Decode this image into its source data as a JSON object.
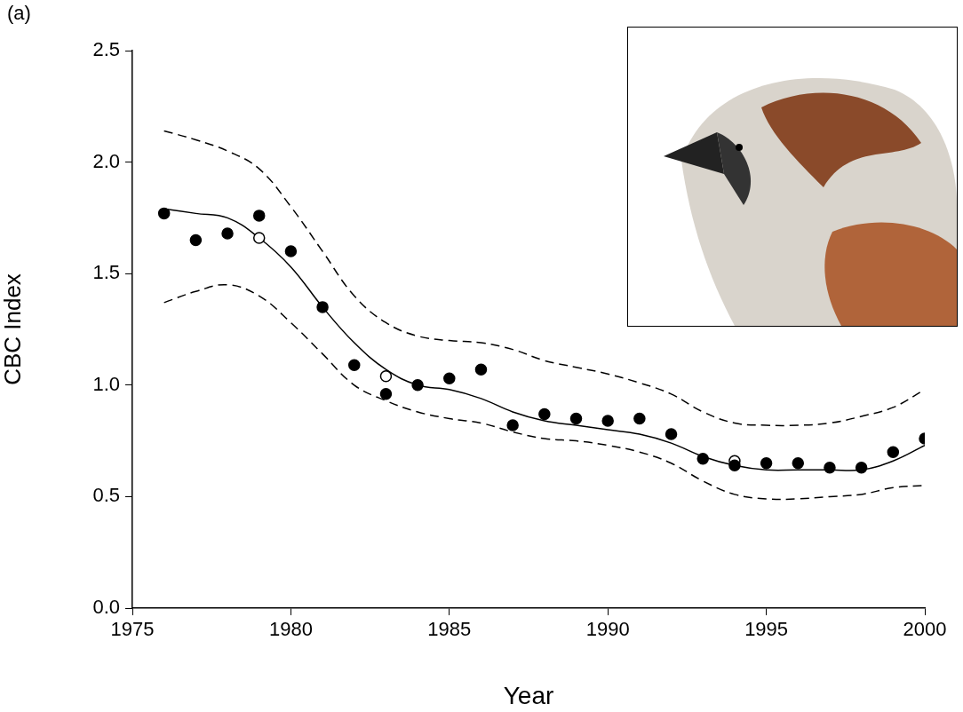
{
  "chart_data": {
    "type": "scatter",
    "panel_label": "(a)",
    "x_label": "Year",
    "y_label": "CBC Index",
    "xlim": [
      1975,
      2000
    ],
    "xticks": [
      1975,
      1980,
      1985,
      1990,
      1995,
      2000
    ],
    "ylim": [
      0,
      2.5
    ],
    "yticks": [
      {
        "value": 0,
        "label": "0.0"
      },
      0.5,
      {
        "value": 1,
        "label": "1.0"
      },
      1.5,
      {
        "value": 2,
        "label": "2.0"
      },
      2.5
    ],
    "grid": false,
    "series": [
      {
        "type": "line",
        "line_style": "dashed",
        "color": "#000000",
        "x": [
          1976,
          1977,
          1978,
          1979,
          1980,
          1981,
          1982,
          1983,
          1984,
          1985,
          1986,
          1987,
          1988,
          1989,
          1990,
          1991,
          1992,
          1993,
          1994,
          1995,
          1996,
          1997,
          1998,
          1999,
          2000
        ],
        "values": [
          2.14,
          2.1,
          2.05,
          1.97,
          1.8,
          1.6,
          1.4,
          1.28,
          1.22,
          1.2,
          1.19,
          1.16,
          1.11,
          1.08,
          1.05,
          1.01,
          0.96,
          0.88,
          0.83,
          0.82,
          0.82,
          0.83,
          0.86,
          0.9,
          0.98
        ]
      },
      {
        "type": "line",
        "line_style": "dashed",
        "color": "#000000",
        "x": [
          1976,
          1977,
          1978,
          1979,
          1980,
          1981,
          1982,
          1983,
          1984,
          1985,
          1986,
          1987,
          1988,
          1989,
          1990,
          1991,
          1992,
          1993,
          1994,
          1995,
          1996,
          1997,
          1998,
          1999,
          2000
        ],
        "values": [
          1.37,
          1.42,
          1.45,
          1.4,
          1.28,
          1.14,
          1.0,
          0.93,
          0.88,
          0.85,
          0.83,
          0.79,
          0.76,
          0.75,
          0.73,
          0.7,
          0.65,
          0.57,
          0.51,
          0.49,
          0.49,
          0.5,
          0.51,
          0.54,
          0.55
        ]
      },
      {
        "type": "line",
        "line_style": "solid",
        "color": "#000000",
        "x": [
          1976,
          1977,
          1978,
          1979,
          1980,
          1981,
          1982,
          1983,
          1984,
          1985,
          1986,
          1987,
          1988,
          1989,
          1990,
          1991,
          1992,
          1993,
          1994,
          1995,
          1996,
          1997,
          1998,
          1999,
          2000
        ],
        "values": [
          1.79,
          1.77,
          1.75,
          1.66,
          1.53,
          1.35,
          1.19,
          1.07,
          1.0,
          0.98,
          0.94,
          0.88,
          0.84,
          0.82,
          0.8,
          0.78,
          0.74,
          0.68,
          0.64,
          0.62,
          0.62,
          0.62,
          0.62,
          0.66,
          0.73
        ]
      },
      {
        "type": "scatter",
        "marker": "filled circle",
        "color": "#000000",
        "x": [
          1976,
          1977,
          1978,
          1979,
          1980,
          1981,
          1982,
          1983,
          1984,
          1985,
          1986,
          1987,
          1988,
          1989,
          1990,
          1991,
          1992,
          1993,
          1994,
          1995,
          1996,
          1997,
          1998,
          1999,
          2000
        ],
        "values": [
          1.77,
          1.65,
          1.68,
          1.76,
          1.6,
          1.35,
          1.09,
          0.96,
          1.0,
          1.03,
          1.07,
          0.82,
          0.87,
          0.85,
          0.84,
          0.85,
          0.78,
          0.67,
          0.64,
          0.65,
          0.65,
          0.63,
          0.63,
          0.7,
          0.76
        ]
      },
      {
        "type": "scatter",
        "marker": "open circle",
        "color": "#000000",
        "x": [
          1979,
          1983,
          1994
        ],
        "values": [
          1.66,
          1.04,
          0.66
        ]
      }
    ]
  }
}
